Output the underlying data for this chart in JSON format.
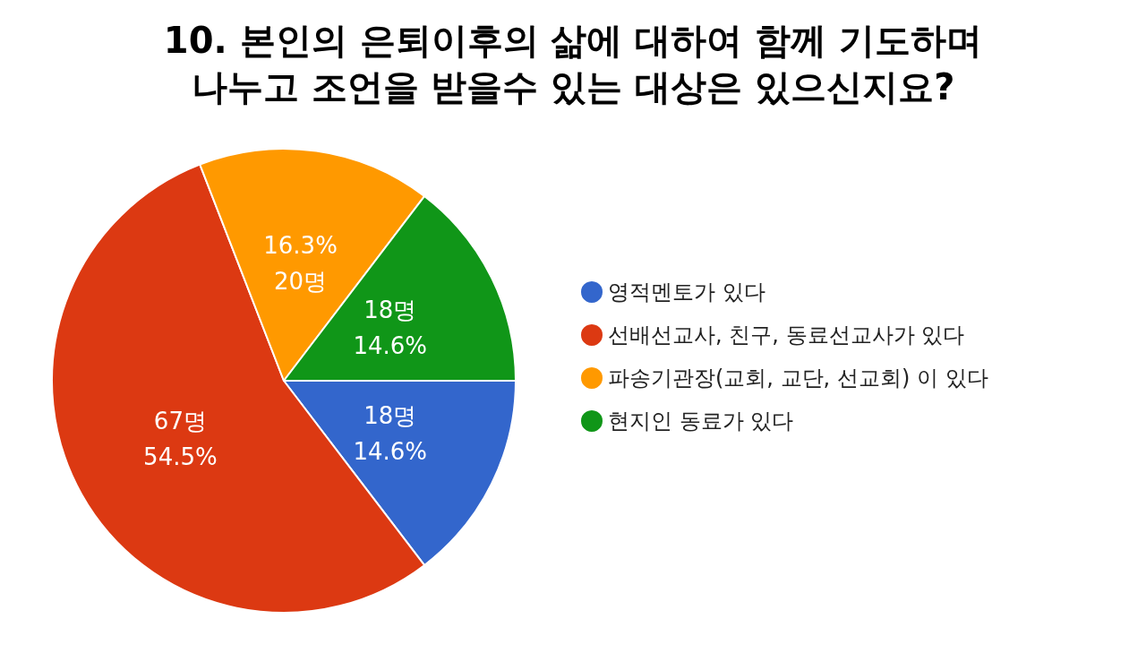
{
  "chart_data": {
    "type": "pie",
    "title": "10. 본인의 은퇴이후의 삶에 대하여 함께 기도하며\n나누고 조언을 받을수 있는 대상은 있으신지요?",
    "categories": [
      "영적멘토가 있다",
      "선배선교사, 친구, 동료선교사가 있다",
      "파송기관장(교회, 교단, 선교회) 이 있다",
      "현지인 동료가 있다"
    ],
    "values": [
      18,
      67,
      20,
      18
    ],
    "colors": [
      "#3366cc",
      "#dc3912",
      "#ff9900",
      "#109618"
    ],
    "value_labels": [
      "18명\n14.6%",
      "67명\n54.5%",
      "16.3%\n20명",
      "18명\n14.6%"
    ],
    "legend": "right"
  }
}
